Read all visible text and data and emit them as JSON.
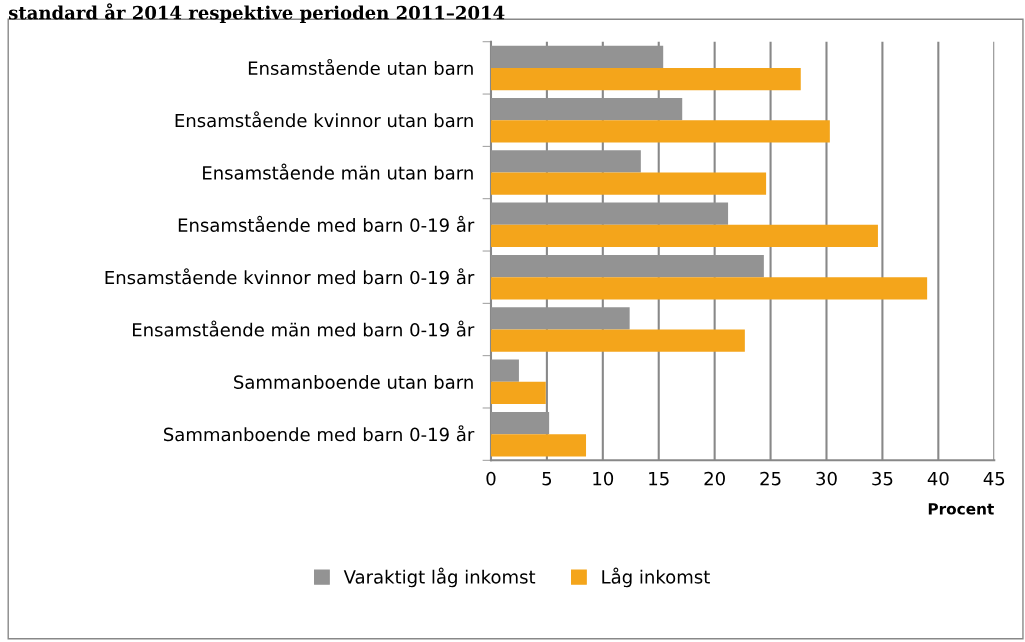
{
  "chart_data": {
    "type": "bar",
    "orientation": "horizontal",
    "title": "standard år 2014 respektive perioden 2011–2014",
    "xlabel": "Procent",
    "categories": [
      "Ensamstående utan barn",
      "Ensamstående kvinnor utan barn",
      "Ensamstående män utan barn",
      "Ensamstående med barn 0-19 år",
      "Ensamstående kvinnor med barn 0-19 år",
      "Ensamstående män med barn 0-19 år",
      "Sammanboende utan barn",
      "Sammanboende med barn 0-19 år"
    ],
    "series": [
      {
        "name": "Varaktigt låg inkomst",
        "color": "#939393",
        "values": [
          15.4,
          17.1,
          13.4,
          21.2,
          24.4,
          12.4,
          2.5,
          5.2
        ]
      },
      {
        "name": "Låg inkomst",
        "color": "#f4a51b",
        "values": [
          27.7,
          30.3,
          24.6,
          34.6,
          39.0,
          22.7,
          4.9,
          8.5
        ]
      }
    ],
    "xlim": [
      0,
      45
    ],
    "xticks": [
      0,
      5,
      10,
      15,
      20,
      25,
      30,
      35,
      40,
      45
    ],
    "grid": "x",
    "legend": "bottom"
  }
}
